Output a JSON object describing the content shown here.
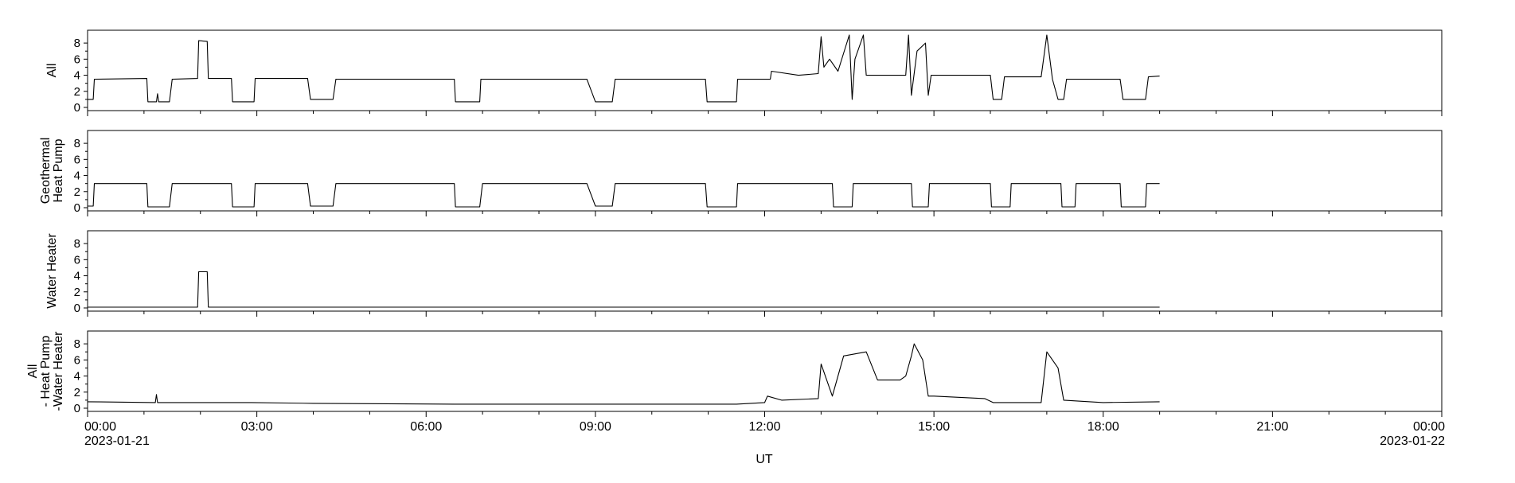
{
  "chart_data": {
    "type": "line",
    "xlabel": "UT",
    "x_range": [
      "2023-01-21 00:00",
      "2023-01-22 00:00"
    ],
    "x_tick_labels": [
      "00:00",
      "03:00",
      "06:00",
      "09:00",
      "12:00",
      "15:00",
      "18:00",
      "21:00",
      "00:00"
    ],
    "x_tick_hours": [
      0,
      3,
      6,
      9,
      12,
      15,
      18,
      21,
      24
    ],
    "x_start_date": "2023-01-21",
    "x_end_date": "2023-01-22",
    "ylim": [
      0,
      9
    ],
    "y_ticks": [
      0,
      2,
      4,
      6,
      8
    ],
    "grid": false,
    "panels": [
      {
        "ylabel_lines": [
          "All"
        ],
        "points": [
          [
            0,
            1
          ],
          [
            0.1,
            1
          ],
          [
            0.12,
            3.5
          ],
          [
            1.05,
            3.6
          ],
          [
            1.07,
            0.7
          ],
          [
            1.22,
            0.7
          ],
          [
            1.24,
            1.7
          ],
          [
            1.26,
            0.7
          ],
          [
            1.45,
            0.7
          ],
          [
            1.5,
            3.5
          ],
          [
            1.95,
            3.6
          ],
          [
            1.97,
            8.3
          ],
          [
            2.12,
            8.2
          ],
          [
            2.14,
            3.6
          ],
          [
            2.55,
            3.6
          ],
          [
            2.57,
            0.7
          ],
          [
            2.95,
            0.7
          ],
          [
            2.97,
            3.6
          ],
          [
            3.9,
            3.6
          ],
          [
            3.95,
            1
          ],
          [
            4.35,
            1
          ],
          [
            4.4,
            3.5
          ],
          [
            6.5,
            3.5
          ],
          [
            6.52,
            0.7
          ],
          [
            6.95,
            0.7
          ],
          [
            6.97,
            3.5
          ],
          [
            8.85,
            3.5
          ],
          [
            9,
            0.7
          ],
          [
            9.3,
            0.7
          ],
          [
            9.35,
            3.5
          ],
          [
            10.95,
            3.5
          ],
          [
            10.98,
            0.7
          ],
          [
            11.5,
            0.7
          ],
          [
            11.52,
            3.5
          ],
          [
            12.1,
            3.5
          ],
          [
            12.12,
            4.5
          ],
          [
            12.6,
            4
          ],
          [
            12.95,
            4.2
          ],
          [
            13,
            8.8
          ],
          [
            13.05,
            5
          ],
          [
            13.15,
            6
          ],
          [
            13.3,
            4.5
          ],
          [
            13.5,
            9
          ],
          [
            13.55,
            1
          ],
          [
            13.6,
            6
          ],
          [
            13.75,
            9
          ],
          [
            13.8,
            4
          ],
          [
            14.5,
            4
          ],
          [
            14.55,
            9
          ],
          [
            14.6,
            1.5
          ],
          [
            14.7,
            7
          ],
          [
            14.85,
            8
          ],
          [
            14.9,
            1.5
          ],
          [
            14.95,
            4
          ],
          [
            16,
            4
          ],
          [
            16.05,
            1
          ],
          [
            16.2,
            1
          ],
          [
            16.25,
            3.8
          ],
          [
            16.9,
            3.8
          ],
          [
            17,
            9
          ],
          [
            17.1,
            3.5
          ],
          [
            17.2,
            1
          ],
          [
            17.3,
            1
          ],
          [
            17.35,
            3.5
          ],
          [
            18.3,
            3.5
          ],
          [
            18.35,
            1
          ],
          [
            18.75,
            1
          ],
          [
            18.8,
            3.8
          ],
          [
            19,
            3.9
          ]
        ]
      },
      {
        "ylabel_lines": [
          "Geothermal",
          "Heat Pump"
        ],
        "points": [
          [
            0,
            0.2
          ],
          [
            0.1,
            0.2
          ],
          [
            0.12,
            3
          ],
          [
            1.05,
            3
          ],
          [
            1.07,
            0.1
          ],
          [
            1.45,
            0.1
          ],
          [
            1.5,
            3
          ],
          [
            2.55,
            3
          ],
          [
            2.57,
            0.1
          ],
          [
            2.95,
            0.1
          ],
          [
            2.97,
            3
          ],
          [
            3.9,
            3
          ],
          [
            3.95,
            0.2
          ],
          [
            4.35,
            0.2
          ],
          [
            4.4,
            3
          ],
          [
            6.5,
            3
          ],
          [
            6.52,
            0.1
          ],
          [
            6.95,
            0.1
          ],
          [
            7,
            3
          ],
          [
            8.85,
            3
          ],
          [
            9,
            0.2
          ],
          [
            9.3,
            0.2
          ],
          [
            9.35,
            3
          ],
          [
            10.95,
            3
          ],
          [
            10.98,
            0.1
          ],
          [
            11.5,
            0.1
          ],
          [
            11.52,
            3
          ],
          [
            13.2,
            3
          ],
          [
            13.22,
            0.1
          ],
          [
            13.55,
            0.1
          ],
          [
            13.57,
            3
          ],
          [
            14.6,
            3
          ],
          [
            14.62,
            0.1
          ],
          [
            14.9,
            0.1
          ],
          [
            14.92,
            3
          ],
          [
            16,
            3
          ],
          [
            16.02,
            0.1
          ],
          [
            16.35,
            0.1
          ],
          [
            16.37,
            3
          ],
          [
            17.25,
            3
          ],
          [
            17.27,
            0.1
          ],
          [
            17.5,
            0.1
          ],
          [
            17.52,
            3
          ],
          [
            18.3,
            3
          ],
          [
            18.32,
            0.1
          ],
          [
            18.75,
            0.1
          ],
          [
            18.77,
            3
          ],
          [
            19,
            3
          ]
        ]
      },
      {
        "ylabel_lines": [
          "Water Heater"
        ],
        "points": [
          [
            0,
            0.1
          ],
          [
            1.95,
            0.1
          ],
          [
            1.97,
            4.5
          ],
          [
            2.12,
            4.5
          ],
          [
            2.14,
            0.1
          ],
          [
            19,
            0.1
          ]
        ]
      },
      {
        "ylabel_lines": [
          "All",
          "- Heat Pump",
          "-Water Heater"
        ],
        "points": [
          [
            0,
            0.8
          ],
          [
            1.2,
            0.7
          ],
          [
            1.22,
            1.7
          ],
          [
            1.24,
            0.7
          ],
          [
            2.9,
            0.7
          ],
          [
            4,
            0.6
          ],
          [
            6.5,
            0.5
          ],
          [
            9,
            0.5
          ],
          [
            11.5,
            0.5
          ],
          [
            12,
            0.7
          ],
          [
            12.05,
            1.5
          ],
          [
            12.3,
            1
          ],
          [
            12.95,
            1.2
          ],
          [
            13,
            5.5
          ],
          [
            13.2,
            1.5
          ],
          [
            13.4,
            6.5
          ],
          [
            13.8,
            7
          ],
          [
            14,
            3.5
          ],
          [
            14.4,
            3.5
          ],
          [
            14.5,
            4
          ],
          [
            14.6,
            6.5
          ],
          [
            14.65,
            8
          ],
          [
            14.8,
            6
          ],
          [
            14.9,
            1.5
          ],
          [
            15,
            1.5
          ],
          [
            15.9,
            1.2
          ],
          [
            16.05,
            0.7
          ],
          [
            16.9,
            0.7
          ],
          [
            17,
            7
          ],
          [
            17.2,
            5
          ],
          [
            17.3,
            1
          ],
          [
            18,
            0.7
          ],
          [
            19,
            0.8
          ]
        ]
      }
    ]
  }
}
